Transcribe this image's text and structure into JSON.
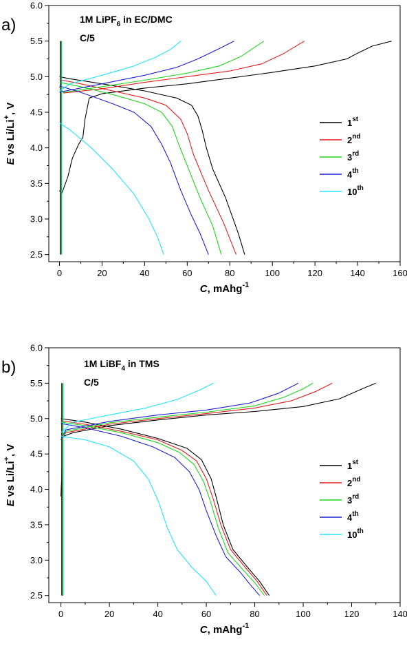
{
  "chart_data": [
    {
      "type": "line",
      "panel_label": "a)",
      "annotation": {
        "main": "1M LiPF",
        "sub": "6",
        "rest": " in EC/DMC"
      },
      "rate": "C/5",
      "xlabel": {
        "italic": "C",
        "rest": ", mAhg",
        "sup": "-1"
      },
      "ylabel": {
        "italic": "E",
        "rest": " vs Li/Li",
        "sup": "+",
        "tail": ", V"
      },
      "xlim": [
        -5,
        160
      ],
      "ylim": [
        2.4,
        6.0
      ],
      "xticks": [
        "0",
        "20",
        "40",
        "60",
        "80",
        "100",
        "120",
        "140",
        "160"
      ],
      "yticks": [
        "2.5",
        "3.0",
        "3.5",
        "4.0",
        "4.5",
        "5.0",
        "5.5",
        "6.0"
      ],
      "series": [
        {
          "name": "1",
          "sup": "st",
          "color": "#000000",
          "charge": [
            [
              0,
              3.4
            ],
            [
              1,
              3.35
            ],
            [
              4,
              3.6
            ],
            [
              6,
              3.85
            ],
            [
              9,
              4.05
            ],
            [
              11,
              4.15
            ],
            [
              12,
              4.4
            ],
            [
              14,
              4.7
            ],
            [
              20,
              4.76
            ],
            [
              40,
              4.84
            ],
            [
              60,
              4.9
            ],
            [
              80,
              4.98
            ],
            [
              100,
              5.06
            ],
            [
              120,
              5.15
            ],
            [
              135,
              5.25
            ],
            [
              140,
              5.33
            ],
            [
              147,
              5.43
            ],
            [
              156,
              5.5
            ]
          ],
          "discharge": [
            [
              0,
              5.0
            ],
            [
              5,
              4.97
            ],
            [
              20,
              4.9
            ],
            [
              40,
              4.8
            ],
            [
              55,
              4.7
            ],
            [
              62,
              4.6
            ],
            [
              65,
              4.45
            ],
            [
              67,
              4.25
            ],
            [
              69,
              4.0
            ],
            [
              72,
              3.7
            ],
            [
              78,
              3.3
            ],
            [
              84,
              2.8
            ],
            [
              87,
              2.5
            ]
          ]
        },
        {
          "name": "2",
          "sup": "nd",
          "color": "#e41a1c",
          "charge": [
            [
              0,
              4.85
            ],
            [
              2,
              4.77
            ],
            [
              20,
              4.83
            ],
            [
              40,
              4.92
            ],
            [
              60,
              5.0
            ],
            [
              80,
              5.08
            ],
            [
              95,
              5.18
            ],
            [
              105,
              5.32
            ],
            [
              115,
              5.5
            ]
          ],
          "discharge": [
            [
              0,
              4.96
            ],
            [
              10,
              4.9
            ],
            [
              25,
              4.8
            ],
            [
              40,
              4.7
            ],
            [
              50,
              4.6
            ],
            [
              57,
              4.4
            ],
            [
              60,
              4.2
            ],
            [
              63,
              3.9
            ],
            [
              70,
              3.4
            ],
            [
              77,
              2.95
            ],
            [
              83,
              2.5
            ]
          ]
        },
        {
          "name": "3",
          "sup": "rd",
          "color": "#1fd41f",
          "charge": [
            [
              0,
              4.8
            ],
            [
              2,
              4.78
            ],
            [
              20,
              4.86
            ],
            [
              40,
              4.95
            ],
            [
              60,
              5.05
            ],
            [
              75,
              5.15
            ],
            [
              85,
              5.28
            ],
            [
              96,
              5.5
            ]
          ],
          "discharge": [
            [
              0,
              4.92
            ],
            [
              10,
              4.86
            ],
            [
              25,
              4.75
            ],
            [
              40,
              4.62
            ],
            [
              48,
              4.5
            ],
            [
              53,
              4.3
            ],
            [
              56,
              4.05
            ],
            [
              60,
              3.75
            ],
            [
              66,
              3.3
            ],
            [
              72,
              2.9
            ],
            [
              76,
              2.5
            ]
          ]
        },
        {
          "name": "4",
          "sup": "th",
          "color": "#1c1cd8",
          "charge": [
            [
              0,
              4.78
            ],
            [
              3,
              4.8
            ],
            [
              20,
              4.9
            ],
            [
              40,
              5.02
            ],
            [
              55,
              5.13
            ],
            [
              65,
              5.25
            ],
            [
              74,
              5.38
            ],
            [
              82,
              5.5
            ]
          ],
          "discharge": [
            [
              0,
              4.87
            ],
            [
              10,
              4.78
            ],
            [
              25,
              4.62
            ],
            [
              35,
              4.5
            ],
            [
              43,
              4.3
            ],
            [
              48,
              4.05
            ],
            [
              52,
              3.8
            ],
            [
              57,
              3.4
            ],
            [
              62,
              3.05
            ],
            [
              66,
              2.8
            ],
            [
              70,
              2.5
            ]
          ]
        },
        {
          "name": "10",
          "sup": "th",
          "color": "#22e5ff",
          "charge": [
            [
              0,
              4.8
            ],
            [
              5,
              4.9
            ],
            [
              20,
              5.02
            ],
            [
              35,
              5.15
            ],
            [
              45,
              5.27
            ],
            [
              52,
              5.38
            ],
            [
              57,
              5.5
            ]
          ],
          "discharge": [
            [
              0,
              4.35
            ],
            [
              5,
              4.25
            ],
            [
              15,
              4.0
            ],
            [
              25,
              3.7
            ],
            [
              35,
              3.35
            ],
            [
              42,
              3.0
            ],
            [
              46,
              2.75
            ],
            [
              49,
              2.5
            ]
          ]
        }
      ]
    },
    {
      "type": "line",
      "panel_label": "b)",
      "annotation": {
        "main": "1M  LiBF",
        "sub": "4",
        "rest": " in TMS"
      },
      "rate": "C/5",
      "xlabel": {
        "italic": "C",
        "rest": ", mAhg",
        "sup": "-1"
      },
      "ylabel": {
        "italic": "E",
        "rest": " vs Li/Li",
        "sup": "+",
        "tail": ", V"
      },
      "xlim": [
        -5,
        140
      ],
      "ylim": [
        2.4,
        6.0
      ],
      "xticks": [
        "0",
        "20",
        "40",
        "60",
        "80",
        "100",
        "120",
        "140"
      ],
      "yticks": [
        "2.5",
        "3.0",
        "3.5",
        "4.0",
        "4.5",
        "5.0",
        "5.5",
        "6.0"
      ],
      "series": [
        {
          "name": "1",
          "sup": "st",
          "color": "#000000",
          "charge": [
            [
              0,
              3.9
            ],
            [
              1,
              4.75
            ],
            [
              5,
              4.8
            ],
            [
              20,
              4.9
            ],
            [
              40,
              4.98
            ],
            [
              60,
              5.05
            ],
            [
              80,
              5.1
            ],
            [
              100,
              5.17
            ],
            [
              115,
              5.28
            ],
            [
              125,
              5.43
            ],
            [
              130,
              5.5
            ]
          ],
          "discharge": [
            [
              0,
              5.0
            ],
            [
              10,
              4.95
            ],
            [
              25,
              4.85
            ],
            [
              40,
              4.72
            ],
            [
              52,
              4.58
            ],
            [
              58,
              4.42
            ],
            [
              62,
              4.15
            ],
            [
              64,
              3.9
            ],
            [
              67,
              3.5
            ],
            [
              71,
              3.15
            ],
            [
              77,
              2.9
            ],
            [
              82,
              2.7
            ],
            [
              86,
              2.5
            ]
          ]
        },
        {
          "name": "2",
          "sup": "nd",
          "color": "#e41a1c",
          "charge": [
            [
              0,
              4.7
            ],
            [
              2,
              4.8
            ],
            [
              20,
              4.92
            ],
            [
              40,
              5.0
            ],
            [
              60,
              5.07
            ],
            [
              80,
              5.15
            ],
            [
              95,
              5.25
            ],
            [
              105,
              5.38
            ],
            [
              112,
              5.5
            ]
          ],
          "discharge": [
            [
              0,
              4.97
            ],
            [
              10,
              4.92
            ],
            [
              25,
              4.82
            ],
            [
              40,
              4.7
            ],
            [
              50,
              4.55
            ],
            [
              56,
              4.4
            ],
            [
              60,
              4.15
            ],
            [
              63,
              3.85
            ],
            [
              66,
              3.5
            ],
            [
              70,
              3.15
            ],
            [
              76,
              2.9
            ],
            [
              81,
              2.7
            ],
            [
              85,
              2.5
            ]
          ]
        },
        {
          "name": "3",
          "sup": "rd",
          "color": "#1fd41f",
          "charge": [
            [
              0,
              4.7
            ],
            [
              2,
              4.82
            ],
            [
              20,
              4.94
            ],
            [
              40,
              5.02
            ],
            [
              60,
              5.09
            ],
            [
              80,
              5.18
            ],
            [
              92,
              5.3
            ],
            [
              100,
              5.42
            ],
            [
              104,
              5.5
            ]
          ],
          "discharge": [
            [
              0,
              4.95
            ],
            [
              10,
              4.9
            ],
            [
              25,
              4.8
            ],
            [
              40,
              4.66
            ],
            [
              49,
              4.52
            ],
            [
              55,
              4.35
            ],
            [
              59,
              4.1
            ],
            [
              62,
              3.8
            ],
            [
              65,
              3.45
            ],
            [
              69,
              3.1
            ],
            [
              75,
              2.87
            ],
            [
              80,
              2.68
            ],
            [
              84,
              2.5
            ]
          ]
        },
        {
          "name": "4",
          "sup": "th",
          "color": "#1c1cd8",
          "charge": [
            [
              0,
              4.7
            ],
            [
              2,
              4.84
            ],
            [
              20,
              4.96
            ],
            [
              40,
              5.05
            ],
            [
              60,
              5.12
            ],
            [
              78,
              5.22
            ],
            [
              90,
              5.36
            ],
            [
              98,
              5.5
            ]
          ],
          "discharge": [
            [
              0,
              4.93
            ],
            [
              10,
              4.87
            ],
            [
              25,
              4.75
            ],
            [
              38,
              4.6
            ],
            [
              47,
              4.45
            ],
            [
              53,
              4.25
            ],
            [
              57,
              4.0
            ],
            [
              60,
              3.7
            ],
            [
              64,
              3.35
            ],
            [
              68,
              3.05
            ],
            [
              74,
              2.83
            ],
            [
              78,
              2.66
            ],
            [
              82,
              2.5
            ]
          ]
        },
        {
          "name": "10",
          "sup": "th",
          "color": "#22e5ff",
          "charge": [
            [
              0,
              4.8
            ],
            [
              5,
              4.95
            ],
            [
              20,
              5.05
            ],
            [
              35,
              5.15
            ],
            [
              48,
              5.27
            ],
            [
              57,
              5.4
            ],
            [
              63,
              5.5
            ]
          ],
          "discharge": [
            [
              0,
              4.75
            ],
            [
              10,
              4.7
            ],
            [
              20,
              4.6
            ],
            [
              30,
              4.4
            ],
            [
              36,
              4.15
            ],
            [
              40,
              3.85
            ],
            [
              44,
              3.45
            ],
            [
              48,
              3.15
            ],
            [
              54,
              2.9
            ],
            [
              60,
              2.7
            ],
            [
              64,
              2.5
            ]
          ]
        }
      ]
    }
  ]
}
